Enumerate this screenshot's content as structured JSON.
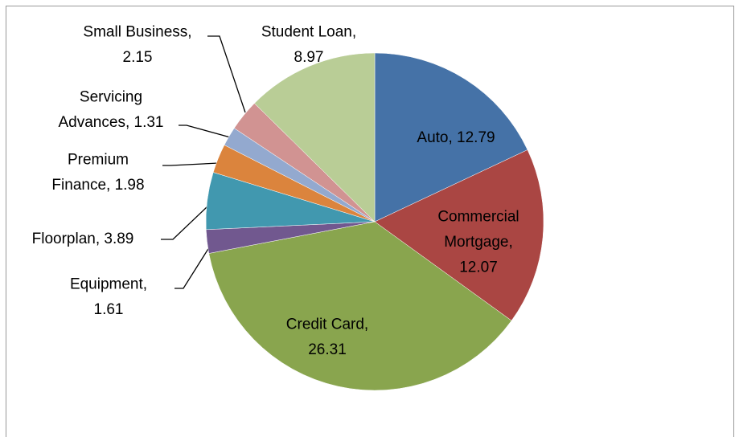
{
  "chart_data": {
    "type": "pie",
    "values": [
      12.79,
      12.07,
      26.31,
      1.61,
      3.89,
      1.98,
      1.31,
      2.15,
      8.97
    ],
    "value_labels": [
      [
        "Auto, 12.79"
      ],
      [
        "Commercial",
        "Mortgage,",
        "12.07"
      ],
      [
        "Credit Card,",
        "26.31"
      ],
      [
        "Equipment,",
        "1.61"
      ],
      [
        "Floorplan, 3.89"
      ],
      [
        "Premium",
        "Finance, 1.98"
      ],
      [
        "Servicing",
        "Advances, 1.31"
      ],
      [
        "Small Business,",
        "2.15"
      ],
      [
        "Student Loan,",
        "8.97"
      ]
    ],
    "colors": [
      "#4572a7",
      "#aa4643",
      "#89a54e",
      "#71588f",
      "#4198af",
      "#db843d",
      "#93a9cf",
      "#d19392",
      "#b9cd96"
    ]
  }
}
